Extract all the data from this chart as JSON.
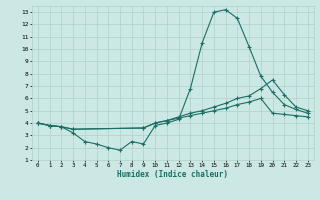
{
  "xlabel": "Humidex (Indice chaleur)",
  "bg_color": "#cce8e4",
  "grid_color": "#b0d0cc",
  "line_color": "#1a6e64",
  "xlim": [
    -0.5,
    23.5
  ],
  "ylim": [
    1,
    13.5
  ],
  "xticks": [
    0,
    1,
    2,
    3,
    4,
    5,
    6,
    7,
    8,
    9,
    10,
    11,
    12,
    13,
    14,
    15,
    16,
    17,
    18,
    19,
    20,
    21,
    22,
    23
  ],
  "yticks": [
    1,
    2,
    3,
    4,
    5,
    6,
    7,
    8,
    9,
    10,
    11,
    12,
    13
  ],
  "series": [
    {
      "x": [
        0,
        1,
        2,
        3,
        4,
        5,
        6,
        7,
        8,
        9,
        10,
        11,
        12,
        13,
        14,
        15,
        16,
        17,
        18,
        19,
        20,
        21,
        22,
        23
      ],
      "y": [
        4.0,
        3.8,
        3.7,
        3.2,
        2.5,
        2.3,
        2.0,
        1.8,
        2.5,
        2.3,
        3.8,
        4.0,
        4.3,
        6.8,
        10.5,
        13.0,
        13.2,
        12.5,
        10.2,
        7.8,
        6.5,
        5.5,
        5.1,
        4.8
      ]
    },
    {
      "x": [
        0,
        1,
        2,
        3,
        9,
        10,
        11,
        12,
        13,
        14,
        15,
        16,
        17,
        18,
        19,
        20,
        21,
        22,
        23
      ],
      "y": [
        4.0,
        3.8,
        3.7,
        3.5,
        3.6,
        4.0,
        4.2,
        4.5,
        4.8,
        5.0,
        5.3,
        5.6,
        6.0,
        6.2,
        6.8,
        7.5,
        6.3,
        5.3,
        5.0
      ]
    },
    {
      "x": [
        0,
        1,
        2,
        3,
        9,
        10,
        11,
        12,
        13,
        14,
        15,
        16,
        17,
        18,
        19,
        20,
        21,
        22,
        23
      ],
      "y": [
        4.0,
        3.8,
        3.7,
        3.5,
        3.6,
        4.0,
        4.2,
        4.4,
        4.6,
        4.8,
        5.0,
        5.2,
        5.5,
        5.7,
        6.0,
        4.8,
        4.7,
        4.6,
        4.5
      ]
    }
  ],
  "marker": "+",
  "markersize": 3.5,
  "linewidth": 0.8
}
